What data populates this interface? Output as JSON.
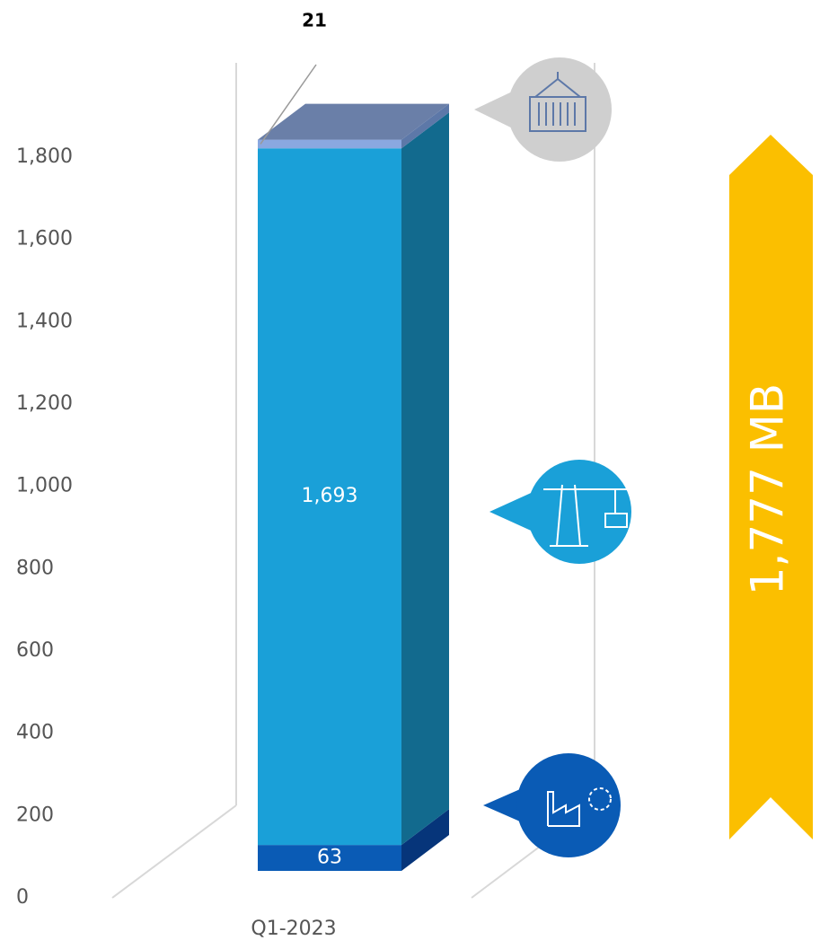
{
  "chart_data": {
    "type": "bar3d_stacked",
    "categories": [
      "Q1-2023"
    ],
    "series": [
      {
        "values": [
          63
        ],
        "color": "#0a5bb5",
        "side": "#06357a"
      },
      {
        "values": [
          1693
        ],
        "color": "#1aa0d8",
        "side": "#126a8e"
      },
      {
        "values": [
          21
        ],
        "color": "#8aa8e0",
        "side": "#5d78a8"
      }
    ],
    "value_labels": [
      "63",
      "1,693",
      "21"
    ],
    "ylim": [
      0,
      1900
    ],
    "yticks": [
      0,
      {
        "value": 200,
        "label": "200"
      },
      {
        "value": 400,
        "label": "400"
      },
      {
        "value": 600,
        "label": "600"
      },
      {
        "value": 800,
        "label": "800"
      },
      {
        "value": 1000,
        "label": "1,000"
      },
      {
        "value": 1200,
        "label": "1,200"
      },
      {
        "value": 1400,
        "label": "1,400"
      },
      {
        "value": 1600,
        "label": "1,600"
      },
      {
        "value": 1800,
        "label": "1,800"
      }
    ],
    "grid": false,
    "total_label": "1,777 MB",
    "total_color": "#fbbf00"
  }
}
